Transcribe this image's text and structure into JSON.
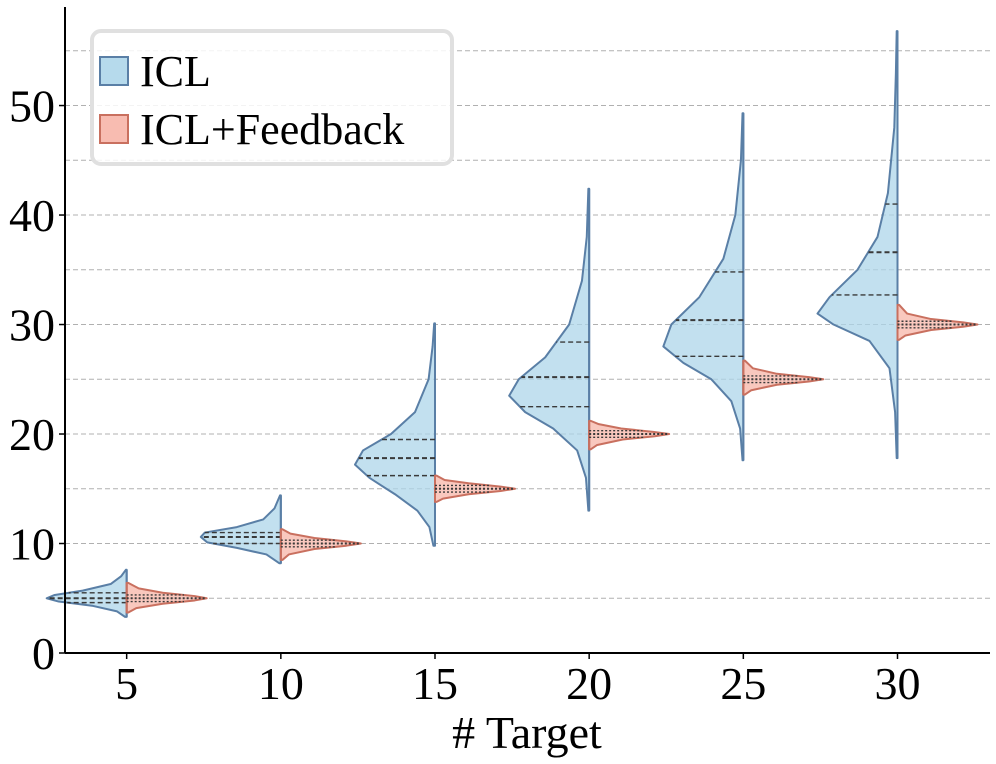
{
  "chart_data": {
    "type": "split-violin",
    "xlabel": "# Target",
    "ylabel": "",
    "categories": [
      "5",
      "10",
      "15",
      "20",
      "25",
      "30"
    ],
    "x": [
      5,
      10,
      15,
      20,
      25,
      30
    ],
    "ylim": [
      0,
      59
    ],
    "yticks": [
      0,
      10,
      20,
      30,
      40,
      50
    ],
    "yticklabels": [
      "0",
      "10",
      "20",
      "30",
      "40",
      "50"
    ],
    "grid": "horizontal dashed",
    "legend_position": "top-left",
    "series": [
      {
        "name": "ICL",
        "side": "left",
        "fill": "#aed6ea",
        "edge": "#5a7fa6",
        "inner_line_style": "dashed",
        "min": [
          3.3,
          8.2,
          9.8,
          13.0,
          17.6,
          17.8
        ],
        "max": [
          7.6,
          14.4,
          30.1,
          42.4,
          49.3,
          56.8
        ],
        "q1": [
          4.6,
          10.0,
          16.2,
          22.5,
          27.1,
          32.7
        ],
        "median": [
          5.0,
          10.6,
          17.8,
          25.2,
          30.4,
          36.6
        ],
        "q3": [
          5.5,
          11.0,
          19.5,
          28.4,
          34.8,
          41.0
        ],
        "profiles": [
          [
            [
              3.3,
              0.02
            ],
            [
              3.8,
              0.12
            ],
            [
              4.3,
              0.42
            ],
            [
              4.7,
              0.85
            ],
            [
              5.0,
              1.0
            ],
            [
              5.3,
              0.9
            ],
            [
              5.7,
              0.55
            ],
            [
              6.3,
              0.2
            ],
            [
              7.0,
              0.07
            ],
            [
              7.6,
              0.01
            ]
          ],
          [
            [
              8.2,
              0.02
            ],
            [
              9.0,
              0.18
            ],
            [
              9.6,
              0.55
            ],
            [
              10.1,
              0.92
            ],
            [
              10.6,
              1.0
            ],
            [
              11.0,
              0.95
            ],
            [
              11.5,
              0.55
            ],
            [
              12.2,
              0.22
            ],
            [
              13.2,
              0.08
            ],
            [
              14.4,
              0.01
            ]
          ],
          [
            [
              9.8,
              0.02
            ],
            [
              11.5,
              0.07
            ],
            [
              13.0,
              0.22
            ],
            [
              14.5,
              0.5
            ],
            [
              16.0,
              0.82
            ],
            [
              17.2,
              1.0
            ],
            [
              18.5,
              0.9
            ],
            [
              20.0,
              0.55
            ],
            [
              22.0,
              0.25
            ],
            [
              25.0,
              0.08
            ],
            [
              28.0,
              0.03
            ],
            [
              30.1,
              0.01
            ]
          ],
          [
            [
              13.0,
              0.01
            ],
            [
              16.0,
              0.04
            ],
            [
              18.5,
              0.15
            ],
            [
              20.5,
              0.45
            ],
            [
              22.0,
              0.8
            ],
            [
              23.5,
              1.0
            ],
            [
              25.0,
              0.88
            ],
            [
              27.0,
              0.55
            ],
            [
              30.0,
              0.25
            ],
            [
              34.0,
              0.09
            ],
            [
              38.0,
              0.03
            ],
            [
              42.4,
              0.01
            ]
          ],
          [
            [
              17.6,
              0.01
            ],
            [
              20.5,
              0.04
            ],
            [
              23.0,
              0.15
            ],
            [
              25.0,
              0.4
            ],
            [
              26.5,
              0.75
            ],
            [
              28.0,
              1.0
            ],
            [
              30.0,
              0.9
            ],
            [
              32.5,
              0.55
            ],
            [
              36.0,
              0.25
            ],
            [
              40.0,
              0.1
            ],
            [
              45.0,
              0.03
            ],
            [
              49.3,
              0.01
            ]
          ],
          [
            [
              17.8,
              0.01
            ],
            [
              22.0,
              0.03
            ],
            [
              26.0,
              0.1
            ],
            [
              28.5,
              0.35
            ],
            [
              30.0,
              0.8
            ],
            [
              31.0,
              1.0
            ],
            [
              32.5,
              0.85
            ],
            [
              35.0,
              0.5
            ],
            [
              38.0,
              0.25
            ],
            [
              42.0,
              0.12
            ],
            [
              48.0,
              0.04
            ],
            [
              53.0,
              0.02
            ],
            [
              56.8,
              0.01
            ]
          ]
        ]
      },
      {
        "name": "ICL+Feedback",
        "side": "right",
        "fill": "#f7b5a8",
        "edge": "#c9705f",
        "inner_line_style": "dotted",
        "min": [
          3.7,
          8.5,
          13.8,
          18.6,
          23.6,
          28.6
        ],
        "max": [
          6.4,
          11.3,
          16.2,
          21.2,
          26.7,
          31.8
        ],
        "q1": [
          4.7,
          9.7,
          14.7,
          19.7,
          24.7,
          29.7
        ],
        "median": [
          5.0,
          10.0,
          15.0,
          20.0,
          25.0,
          30.0
        ],
        "q3": [
          5.3,
          10.3,
          15.3,
          20.3,
          25.3,
          30.3
        ],
        "profiles": [
          [
            [
              3.7,
              0.02
            ],
            [
              4.1,
              0.12
            ],
            [
              4.5,
              0.45
            ],
            [
              4.8,
              0.85
            ],
            [
              5.0,
              1.0
            ],
            [
              5.2,
              0.85
            ],
            [
              5.5,
              0.45
            ],
            [
              5.9,
              0.15
            ],
            [
              6.4,
              0.02
            ]
          ],
          [
            [
              8.5,
              0.02
            ],
            [
              9.0,
              0.1
            ],
            [
              9.5,
              0.42
            ],
            [
              9.8,
              0.82
            ],
            [
              10.0,
              1.0
            ],
            [
              10.2,
              0.82
            ],
            [
              10.5,
              0.42
            ],
            [
              10.9,
              0.12
            ],
            [
              11.3,
              0.02
            ]
          ],
          [
            [
              13.8,
              0.02
            ],
            [
              14.1,
              0.1
            ],
            [
              14.5,
              0.42
            ],
            [
              14.8,
              0.82
            ],
            [
              15.0,
              1.0
            ],
            [
              15.2,
              0.82
            ],
            [
              15.5,
              0.42
            ],
            [
              15.8,
              0.12
            ],
            [
              16.2,
              0.02
            ]
          ],
          [
            [
              18.6,
              0.02
            ],
            [
              19.0,
              0.1
            ],
            [
              19.5,
              0.42
            ],
            [
              19.8,
              0.82
            ],
            [
              20.0,
              1.0
            ],
            [
              20.2,
              0.8
            ],
            [
              20.5,
              0.4
            ],
            [
              20.9,
              0.12
            ],
            [
              21.2,
              0.02
            ]
          ],
          [
            [
              23.6,
              0.02
            ],
            [
              24.0,
              0.1
            ],
            [
              24.5,
              0.42
            ],
            [
              24.8,
              0.82
            ],
            [
              25.0,
              1.0
            ],
            [
              25.2,
              0.82
            ],
            [
              25.5,
              0.42
            ],
            [
              26.0,
              0.12
            ],
            [
              26.7,
              0.02
            ]
          ],
          [
            [
              28.6,
              0.02
            ],
            [
              29.0,
              0.1
            ],
            [
              29.5,
              0.42
            ],
            [
              29.8,
              0.82
            ],
            [
              30.0,
              1.0
            ],
            [
              30.2,
              0.82
            ],
            [
              30.5,
              0.42
            ],
            [
              31.0,
              0.12
            ],
            [
              31.8,
              0.02
            ]
          ]
        ]
      }
    ]
  }
}
